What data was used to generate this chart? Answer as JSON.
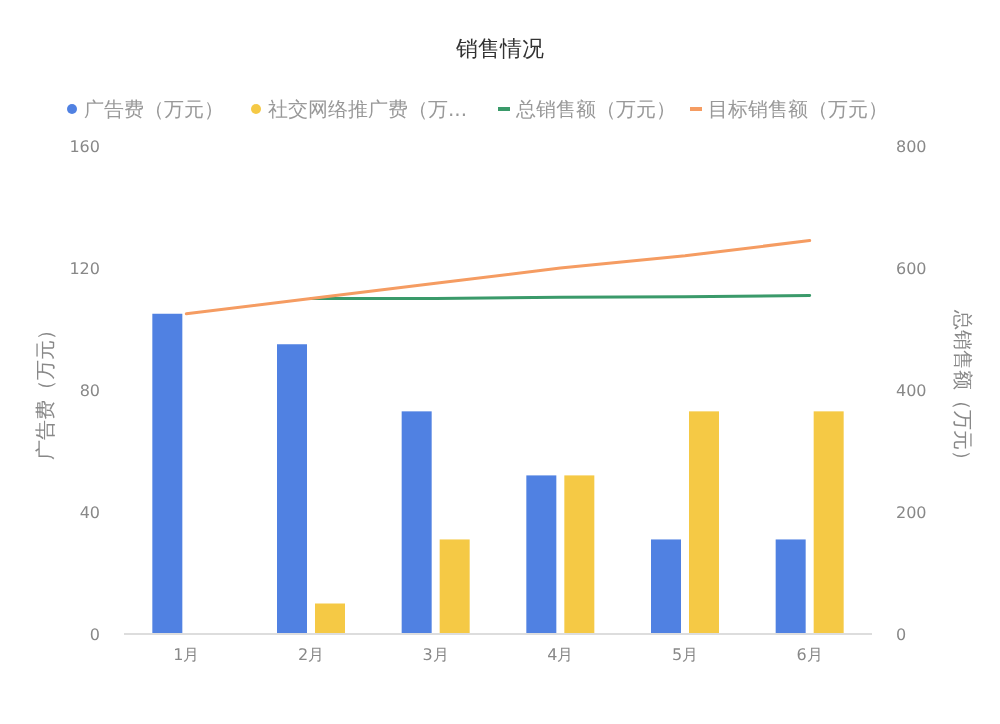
{
  "chart_data": {
    "type": "bar",
    "title": "销售情况",
    "categories": [
      "1月",
      "2月",
      "3月",
      "4月",
      "5月",
      "6月"
    ],
    "series": [
      {
        "name": "广告费（万元）",
        "color": "#5081e2",
        "values": [
          105,
          95,
          73,
          52,
          31,
          31
        ]
      },
      {
        "name": "社交网络推广费（万...",
        "color": "#f5c945",
        "values": [
          0,
          10,
          31,
          52,
          73,
          73
        ]
      },
      {
        "name": "总销售额（万元）",
        "color": "#3a9a6a",
        "type": "line",
        "axis": "y2",
        "values": [
          null,
          550,
          550,
          552,
          553,
          555
        ]
      },
      {
        "name": "目标销售额（万元）",
        "color": "#f59c62",
        "type": "line",
        "axis": "y2",
        "values": [
          525,
          550,
          575,
          600,
          620,
          645
        ]
      }
    ],
    "ylim": [
      0,
      160
    ],
    "yticks": [
      0,
      40,
      80,
      120,
      160
    ],
    "y2lim": [
      0,
      800
    ],
    "y2ticks": [
      0,
      200,
      400,
      600,
      800
    ],
    "ylabel": "广告费（万元）",
    "y2label": "总销售额（万元）",
    "grid": false,
    "legend": "top",
    "marker": "none",
    "line_style": "solid"
  }
}
